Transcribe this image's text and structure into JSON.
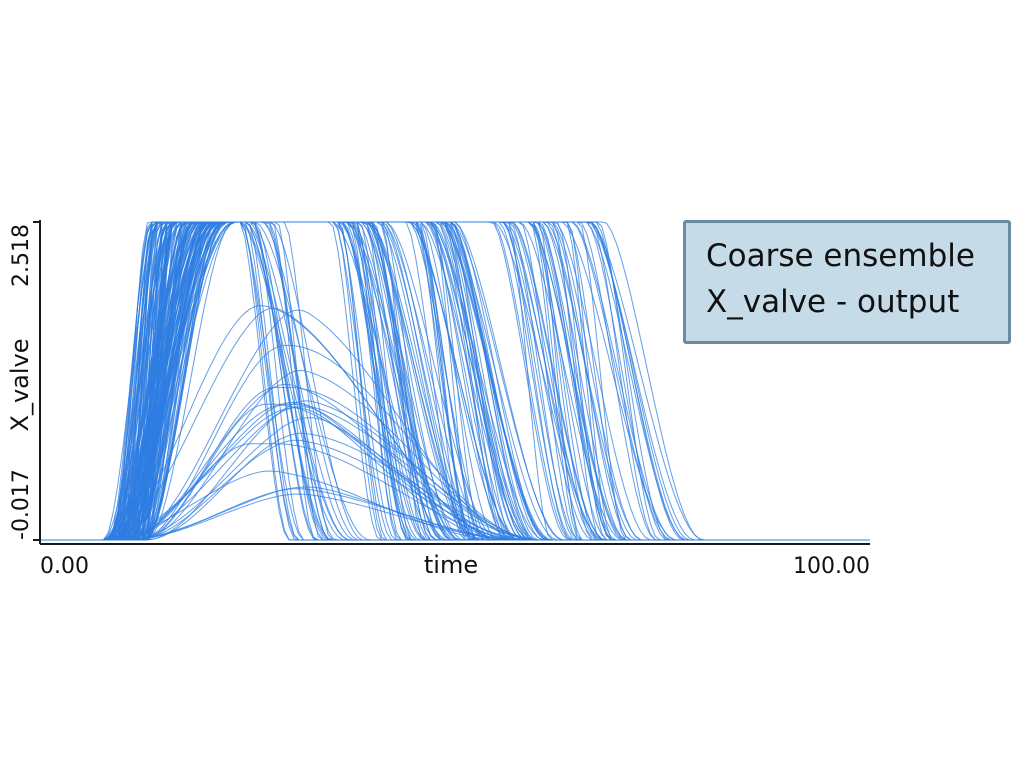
{
  "chart_data": {
    "type": "line",
    "xlabel": "time",
    "ylabel": "X_valve",
    "x_ticks": [
      "0.00",
      "100.00"
    ],
    "y_ticks": [
      "-0.017",
      "2.518"
    ],
    "xlim": [
      0,
      100
    ],
    "ylim": [
      -0.017,
      2.518
    ],
    "line_color": "#2f7de1",
    "annotation": [
      "Coarse ensemble",
      "X_valve - output"
    ],
    "ensemble": {
      "description_of_shape": "pulse",
      "count": 200,
      "rise_start_range": [
        7.5,
        13
      ],
      "rise_end_range": [
        13,
        24
      ],
      "fall_start_range": [
        24,
        68
      ],
      "fall_duration_range": [
        5,
        14
      ],
      "fall_clusters": [
        {
          "start_range": [
            24,
            30
          ],
          "weight": 0.18
        },
        {
          "start_range": [
            35,
            42
          ],
          "weight": 0.27
        },
        {
          "start_range": [
            44,
            50
          ],
          "weight": 0.22
        },
        {
          "start_range": [
            54,
            60
          ],
          "weight": 0.2
        },
        {
          "start_range": [
            60,
            68
          ],
          "weight": 0.13
        }
      ],
      "partial_fraction": 0.12,
      "partial_peak_range": [
        0.05,
        2.0
      ]
    },
    "grid": false
  }
}
